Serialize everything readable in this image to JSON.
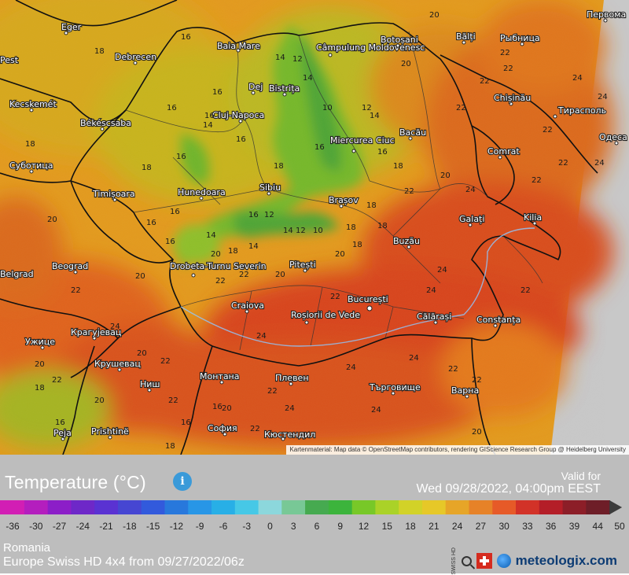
{
  "map": {
    "cities": [
      {
        "name": "Eger"
      },
      {
        "name": "Debrecen"
      },
      {
        "name": "Baia Mare"
      },
      {
        "name": "Câmpulung Moldovenesc"
      },
      {
        "name": "Botoșani"
      },
      {
        "name": "Bălți"
      },
      {
        "name": "Рыбница"
      },
      {
        "name": "Первома"
      },
      {
        "name": "Kecskemét"
      },
      {
        "name": "Békéscsaba"
      },
      {
        "name": "Dej"
      },
      {
        "name": "Bistrița"
      },
      {
        "name": "Cluj-Napoca"
      },
      {
        "name": "Chișinău"
      },
      {
        "name": "Тирасполь"
      },
      {
        "name": "Miercurea Ciuc"
      },
      {
        "name": "Bacău"
      },
      {
        "name": "Одеса"
      },
      {
        "name": "Comrat"
      },
      {
        "name": "Суботица"
      },
      {
        "name": "Timișoara"
      },
      {
        "name": "Hunedoara"
      },
      {
        "name": "Sibiu"
      },
      {
        "name": "Brașov"
      },
      {
        "name": "Galați"
      },
      {
        "name": "Kilia"
      },
      {
        "name": "Buzău"
      },
      {
        "name": "Drobeta-Turnu Severin"
      },
      {
        "name": "Beograd"
      },
      {
        "name": "Pitești"
      },
      {
        "name": "Craiova"
      },
      {
        "name": "București"
      },
      {
        "name": "Roșiorii de Vede"
      },
      {
        "name": "Călărași"
      },
      {
        "name": "Constanța"
      },
      {
        "name": "Крагујевац"
      },
      {
        "name": "Ужице"
      },
      {
        "name": "Крушевац"
      },
      {
        "name": "Ниш"
      },
      {
        "name": "Монтана"
      },
      {
        "name": "Плевен"
      },
      {
        "name": "Търговище"
      },
      {
        "name": "Варна"
      },
      {
        "name": "София"
      },
      {
        "name": "Кюстендил"
      },
      {
        "name": "Prishtinë"
      },
      {
        "name": "Peja"
      },
      {
        "name": "Pest"
      },
      {
        "name": "Belgrad"
      }
    ],
    "values": [
      {
        "v": "18"
      },
      {
        "v": "16"
      },
      {
        "v": "14"
      },
      {
        "v": "12"
      },
      {
        "v": "20"
      },
      {
        "v": "22"
      },
      {
        "v": "24"
      },
      {
        "v": "10"
      }
    ],
    "attribution": "Kartenmaterial: Map data © OpenStreetMap contributors, rendering GIScience Research Group @ Heidelberg University"
  },
  "panel": {
    "title": "Temperature (°C)",
    "info_icon": "info-icon",
    "valid_label": "Valid for",
    "valid_value": "Wed 09/28/2022, 04:00pm EEST",
    "region": "Romania",
    "model": "Europe Swiss HD 4x4 from 09/27/2022/06z",
    "brand": "meteologix.com",
    "brand_swiss": "SWISS HD",
    "colors": {
      "panel_bg": "#bdbdbd",
      "brand": "#0d3c74"
    }
  },
  "legend": {
    "ticks": [
      "-36",
      "-30",
      "-27",
      "-24",
      "-21",
      "-18",
      "-15",
      "-12",
      "-9",
      "-6",
      "-3",
      "0",
      "3",
      "6",
      "9",
      "12",
      "15",
      "18",
      "21",
      "24",
      "27",
      "30",
      "33",
      "36",
      "39",
      "44",
      "50"
    ],
    "colors": [
      "#d21eb4",
      "#b41ebe",
      "#8c1ec8",
      "#6e28c8",
      "#5a32d2",
      "#4646d2",
      "#325adc",
      "#2878dc",
      "#2896e6",
      "#28afe6",
      "#46c8e6",
      "#8cd7dc",
      "#78c896",
      "#46aa50",
      "#3cb43c",
      "#78c828",
      "#aad228",
      "#d2d228",
      "#e6c828",
      "#e6a528",
      "#e68228",
      "#e65a28",
      "#d23228",
      "#b41e28",
      "#8c1e28",
      "#6e1e28",
      "#3c3c3c"
    ]
  }
}
